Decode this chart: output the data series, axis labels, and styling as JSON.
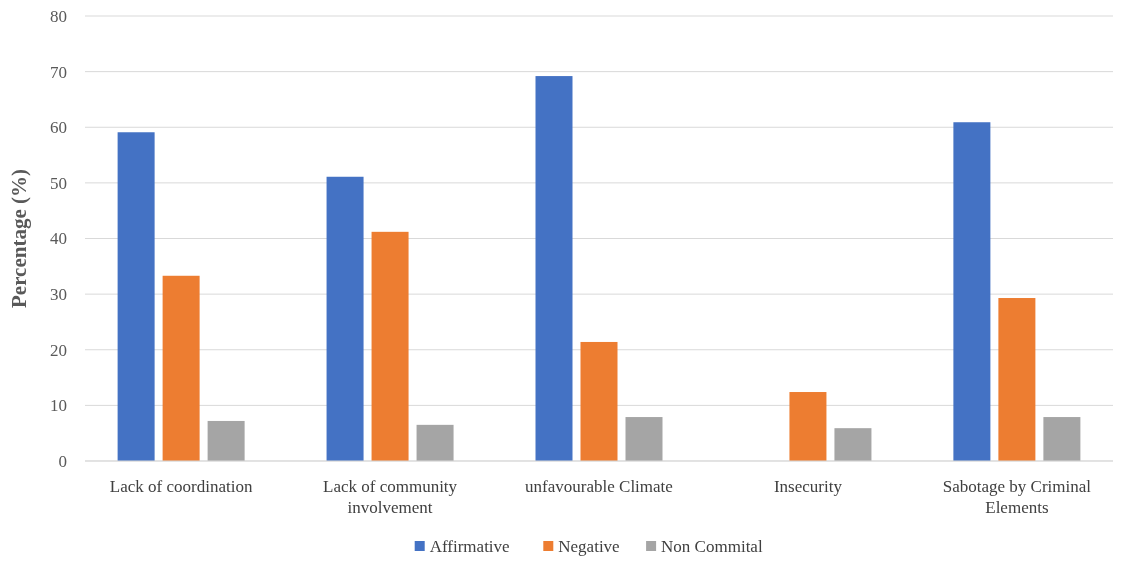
{
  "chart_data": {
    "type": "bar",
    "ylabel": "Percentage (%)",
    "categories": [
      "Lack of coordination",
      "Lack of community involvement",
      "unfavourable Climate",
      "Insecurity",
      "Sabotage by Criminal Elements"
    ],
    "series": [
      {
        "name": "Affirmative",
        "color": "#4472c4",
        "values": [
          59.1,
          51.1,
          69.2,
          0,
          60.9
        ]
      },
      {
        "name": "Negative",
        "color": "#ed7d31",
        "values": [
          33.3,
          41.2,
          21.4,
          12.4,
          29.3
        ]
      },
      {
        "name": "Non Commital",
        "color": "#a5a5a5",
        "values": [
          7.2,
          6.5,
          7.9,
          5.9,
          7.9
        ]
      }
    ],
    "ylim": [
      0,
      80
    ],
    "yticks": [
      0,
      10,
      20,
      30,
      40,
      50,
      60,
      70,
      80
    ],
    "grid": "y",
    "legend": "bottom"
  }
}
